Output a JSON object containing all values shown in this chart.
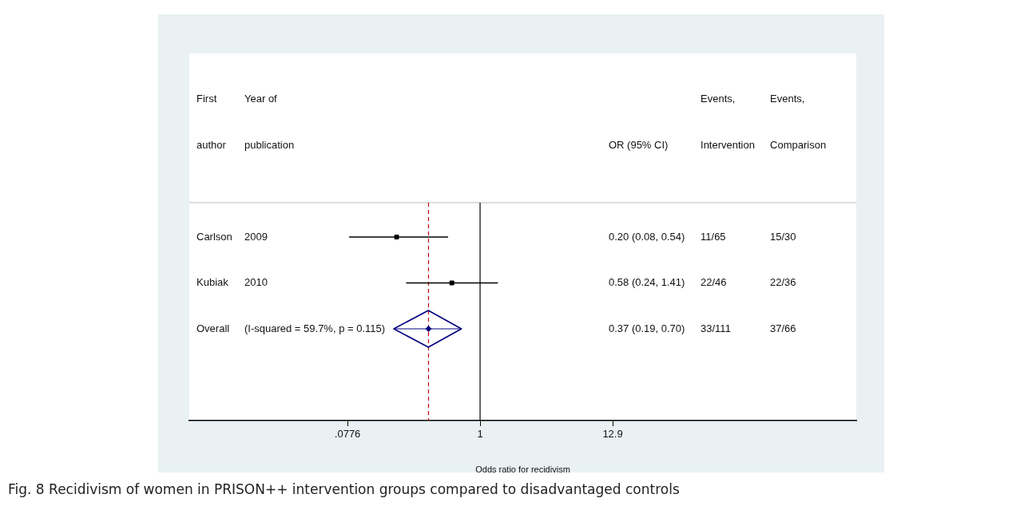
{
  "chart_data": {
    "type": "scatter",
    "orientation": "horizontal",
    "log": "x",
    "grid": false,
    "legend": false,
    "tick_labels": "x",
    "xlabel": "Odds ratio for recidivism",
    "categories": [
      "Carlson",
      "Kubiak",
      "Overall"
    ],
    "series": [
      {
        "color": "#000000",
        "marker": "square",
        "values": [
          0.2,
          0.58,
          null
        ],
        "errors": [
          [
            0.08,
            0.54
          ],
          [
            0.24,
            1.41
          ],
          null
        ]
      },
      {
        "color": "#000080",
        "marker": "diamond",
        "values": [
          null,
          null,
          0.37
        ],
        "errors": [
          null,
          null,
          [
            0.19,
            0.7
          ]
        ]
      }
    ],
    "xlim": [
      0.00367,
      1415
    ],
    "xticks": [
      {
        "value": 0.0776,
        "label": ".0776"
      },
      1,
      12.9
    ],
    "ref_lines": [
      {
        "axis": "x",
        "value": 0.37,
        "color": "#c00000",
        "line_style": "dashed"
      },
      {
        "axis": "x",
        "value": 1,
        "color": "#000000",
        "line_style": "solid"
      }
    ],
    "annotations": [
      "First\nauthor",
      "Year of\npublication",
      "OR (95% CI)",
      "Events,\nIntervention",
      "Events,\nComparison",
      "2009",
      "0.20 (0.08, 0.54)",
      "11/65",
      "15/30",
      "2010",
      "0.58 (0.24, 1.41)",
      "22/46",
      "22/36",
      "(I-squared = 59.7%, p = 0.115)",
      "0.37 (0.19, 0.70)",
      "33/111",
      "37/66",
      "Fig. 8 Recidivism of women in PRISON++ intervention groups compared to disadvantaged controls"
    ]
  }
}
